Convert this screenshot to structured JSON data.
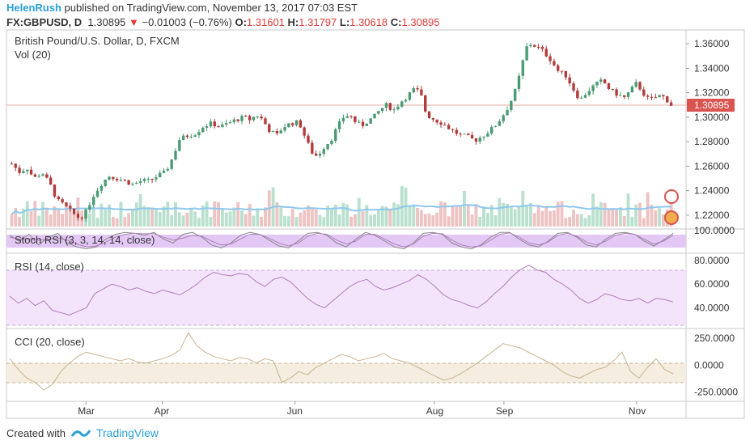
{
  "header": {
    "author": "HelenRush",
    "published_text": "published on TradingView.com, November 13, 2017 07:03 EST",
    "symbol": "FX:GBPUSD, D",
    "price": "1.30895",
    "change": "−0.01003 (−0.76%)",
    "o_label": "O:",
    "o_value": "1.31601",
    "h_label": "H:",
    "h_value": "1.31797",
    "l_label": "L:",
    "l_value": "1.30618",
    "c_label": "C:",
    "c_value": "1.30895"
  },
  "footer": {
    "created_with": "Created with",
    "brand": "TradingView"
  },
  "colors": {
    "up": "#4a9a72",
    "down": "#b23a3a",
    "volume_up": "#a9d8c2",
    "volume_down": "#e8b4b4",
    "volume_ma": "#8ec8ee",
    "rsi_fill": "#f3e3fb",
    "stoch_fill": "#e3c8f6",
    "cci_fill": "#f4ede0",
    "indicator_line": "#b07fb8",
    "cci_line": "#c9b38f",
    "last_price_label": "#d9534f",
    "axis_text": "#333333"
  },
  "chart_data": [
    {
      "type": "candlestick",
      "title": "British Pound/U.S. Dollar, D, FXCM",
      "volume_label": "Vol (20)",
      "x_tick_labels": [
        "Mar",
        "Apr",
        "Jun",
        "Aug",
        "Sep",
        "Nov"
      ],
      "y_tick_labels": [
        "1.36000",
        "1.34000",
        "1.32000",
        "1.30000",
        "1.28000",
        "1.26000",
        "1.24000",
        "1.22000"
      ],
      "ylim": [
        1.212,
        1.368
      ],
      "last_price": "1.30895",
      "path": [
        [
          0,
          1.262
        ],
        [
          8,
          1.255
        ],
        [
          15,
          1.259
        ],
        [
          22,
          1.25
        ],
        [
          30,
          1.255
        ],
        [
          38,
          1.245
        ],
        [
          45,
          1.232
        ],
        [
          52,
          1.228
        ],
        [
          60,
          1.222
        ],
        [
          66,
          1.218
        ],
        [
          72,
          1.22
        ],
        [
          80,
          1.235
        ],
        [
          88,
          1.245
        ],
        [
          96,
          1.252
        ],
        [
          104,
          1.25
        ],
        [
          112,
          1.248
        ],
        [
          120,
          1.245
        ],
        [
          128,
          1.248
        ],
        [
          136,
          1.248
        ],
        [
          144,
          1.252
        ],
        [
          152,
          1.255
        ],
        [
          158,
          1.265
        ],
        [
          166,
          1.282
        ],
        [
          174,
          1.285
        ],
        [
          182,
          1.287
        ],
        [
          190,
          1.293
        ],
        [
          198,
          1.295
        ],
        [
          206,
          1.292
        ],
        [
          214,
          1.295
        ],
        [
          222,
          1.298
        ],
        [
          230,
          1.3
        ],
        [
          236,
          1.298
        ],
        [
          242,
          1.302
        ],
        [
          248,
          1.298
        ],
        [
          254,
          1.29
        ],
        [
          262,
          1.285
        ],
        [
          268,
          1.292
        ],
        [
          276,
          1.295
        ],
        [
          284,
          1.296
        ],
        [
          290,
          1.284
        ],
        [
          296,
          1.272
        ],
        [
          302,
          1.268
        ],
        [
          308,
          1.275
        ],
        [
          316,
          1.282
        ],
        [
          322,
          1.292
        ],
        [
          328,
          1.3
        ],
        [
          334,
          1.302
        ],
        [
          340,
          1.296
        ],
        [
          346,
          1.293
        ],
        [
          352,
          1.297
        ],
        [
          358,
          1.3
        ],
        [
          364,
          1.306
        ],
        [
          370,
          1.31
        ],
        [
          378,
          1.306
        ],
        [
          384,
          1.312
        ],
        [
          392,
          1.318
        ],
        [
          398,
          1.323
        ],
        [
          404,
          1.32
        ],
        [
          410,
          1.302
        ],
        [
          418,
          1.298
        ],
        [
          426,
          1.295
        ],
        [
          434,
          1.29
        ],
        [
          442,
          1.286
        ],
        [
          450,
          1.284
        ],
        [
          458,
          1.281
        ],
        [
          466,
          1.285
        ],
        [
          474,
          1.29
        ],
        [
          480,
          1.295
        ],
        [
          486,
          1.302
        ],
        [
          492,
          1.31
        ],
        [
          498,
          1.322
        ],
        [
          504,
          1.34
        ],
        [
          508,
          1.356
        ],
        [
          512,
          1.36
        ],
        [
          518,
          1.358
        ],
        [
          524,
          1.355
        ],
        [
          532,
          1.348
        ],
        [
          540,
          1.338
        ],
        [
          548,
          1.334
        ],
        [
          556,
          1.322
        ],
        [
          562,
          1.314
        ],
        [
          568,
          1.32
        ],
        [
          576,
          1.326
        ],
        [
          584,
          1.33
        ],
        [
          592,
          1.322
        ],
        [
          600,
          1.318
        ],
        [
          606,
          1.316
        ],
        [
          612,
          1.322
        ],
        [
          618,
          1.328
        ],
        [
          624,
          1.32
        ],
        [
          630,
          1.314
        ],
        [
          636,
          1.316
        ],
        [
          642,
          1.318
        ],
        [
          648,
          1.314
        ],
        [
          652,
          1.31
        ]
      ]
    },
    {
      "type": "line",
      "title": "Stoch RSI (3, 3, 14, 14, close)",
      "y_tick_labels": [
        "100.0000"
      ],
      "bands": [
        20,
        80
      ],
      "ylim": [
        0,
        100
      ],
      "k_values": [
        80,
        50,
        85,
        30,
        70,
        90,
        40,
        20,
        10,
        20,
        60,
        85,
        95,
        90,
        80,
        95,
        60,
        40,
        85,
        95,
        70,
        30,
        15,
        40,
        80,
        95,
        85,
        55,
        25,
        15,
        50,
        90,
        95,
        80,
        40,
        20,
        60,
        95,
        80,
        50,
        20,
        10,
        40,
        90,
        95,
        85,
        40,
        20,
        10,
        30,
        70,
        95,
        95,
        60,
        30,
        20,
        50,
        90,
        95,
        70,
        30,
        20,
        60,
        90,
        95,
        85,
        50,
        25,
        55,
        90
      ],
      "d_values": [
        70,
        60,
        60,
        55,
        60,
        65,
        55,
        35,
        20,
        25,
        45,
        70,
        85,
        90,
        88,
        88,
        70,
        55,
        65,
        80,
        75,
        50,
        30,
        35,
        60,
        85,
        85,
        65,
        40,
        25,
        40,
        75,
        90,
        85,
        55,
        35,
        50,
        85,
        85,
        60,
        35,
        20,
        35,
        75,
        90,
        88,
        55,
        30,
        20,
        25,
        55,
        85,
        92,
        70,
        40,
        30,
        45,
        80,
        90,
        75,
        45,
        30,
        50,
        80,
        90,
        85,
        60,
        35,
        50,
        80
      ]
    },
    {
      "type": "line",
      "title": "RSI (14, close)",
      "y_tick_labels": [
        "80.0000",
        "60.0000",
        "40.0000"
      ],
      "ylim": [
        24,
        84
      ],
      "bands": [
        30,
        70
      ],
      "values": [
        50,
        44,
        48,
        42,
        46,
        38,
        36,
        34,
        37,
        40,
        52,
        56,
        60,
        58,
        55,
        57,
        54,
        52,
        55,
        53,
        51,
        55,
        60,
        66,
        70,
        68,
        67,
        69,
        68,
        62,
        58,
        64,
        66,
        62,
        55,
        48,
        43,
        40,
        46,
        52,
        58,
        62,
        64,
        58,
        55,
        57,
        60,
        63,
        68,
        64,
        58,
        51,
        47,
        45,
        42,
        40,
        45,
        52,
        58,
        66,
        72,
        76,
        72,
        70,
        64,
        60,
        55,
        48,
        44,
        47,
        52,
        50,
        47,
        46,
        48,
        44,
        48,
        47,
        45
      ]
    },
    {
      "type": "line",
      "title": "CCI (20, close)",
      "y_tick_labels": [
        "250.0000",
        "0.0000",
        "-250.0000"
      ],
      "ylim": [
        -320,
        310
      ],
      "bands": [
        -100,
        100
      ],
      "values": [
        60,
        -40,
        -120,
        -160,
        -230,
        -180,
        -60,
        20,
        80,
        120,
        100,
        80,
        60,
        40,
        60,
        30,
        20,
        40,
        60,
        90,
        140,
        300,
        180,
        120,
        80,
        60,
        40,
        70,
        60,
        20,
        60,
        40,
        -160,
        -120,
        -60,
        -90,
        -20,
        20,
        60,
        100,
        80,
        40,
        60,
        80,
        110,
        60,
        40,
        20,
        -20,
        -60,
        -100,
        -140,
        -120,
        -80,
        -30,
        20,
        80,
        140,
        200,
        180,
        160,
        120,
        80,
        40,
        0,
        -60,
        -100,
        -120,
        -80,
        -40,
        -20,
        40,
        120,
        -60,
        -120,
        -20,
        60,
        -40,
        -80
      ]
    }
  ]
}
